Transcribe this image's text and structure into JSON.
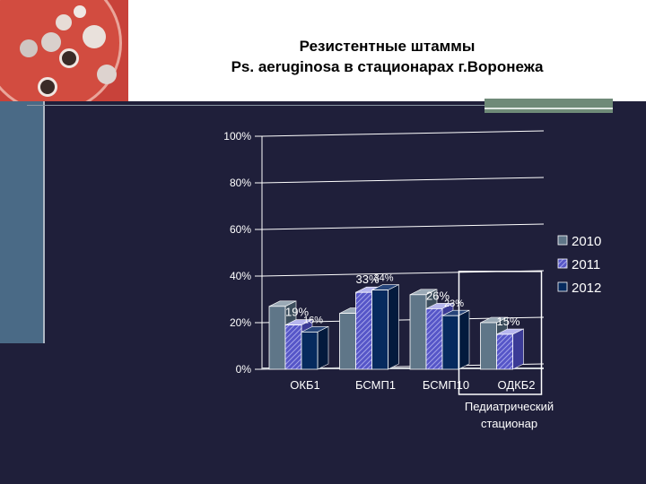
{
  "slide": {
    "title_line1": "Резистентные штаммы",
    "title_line2": "Ps. aeruginosa в стационарах г.Воронежа"
  },
  "colors": {
    "background": "#1f1f3a",
    "series_2010": "#5f7688",
    "series_2011": "#6c6cd8",
    "series_2012": "#062a5e"
  },
  "chart_data": {
    "type": "bar",
    "categories": [
      "ОКБ1",
      "БСМП1",
      "БСМП10",
      "ОДКБ2"
    ],
    "series": [
      {
        "name": "2010",
        "values": [
          27,
          24,
          32,
          20
        ]
      },
      {
        "name": "2011",
        "values": [
          19,
          33,
          26,
          15
        ]
      },
      {
        "name": "2012",
        "values": [
          16,
          34,
          23,
          null
        ]
      }
    ],
    "data_labels": {
      "2010": [
        "",
        "",
        "",
        ""
      ],
      "2011": [
        "19%",
        "33%",
        "26%",
        "15%"
      ],
      "2012": [
        "16%",
        "34%",
        "23%",
        ""
      ]
    },
    "y_ticks": [
      "0%",
      "20%",
      "40%",
      "60%",
      "80%",
      "100%"
    ],
    "ylim": [
      0,
      100
    ],
    "grid": true,
    "legend_position": "right",
    "highlight_box_category": "ОДКБ2",
    "annotation_line1": "Педиатрический",
    "annotation_line2": "стационар"
  }
}
